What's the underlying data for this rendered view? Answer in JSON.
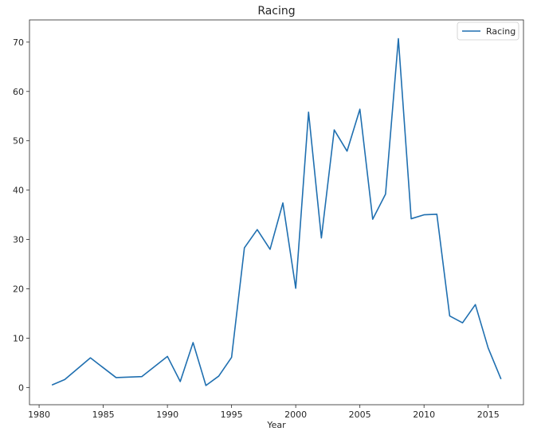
{
  "chart_data": {
    "type": "line",
    "title": "Racing",
    "xlabel": "Year",
    "ylabel": "",
    "xlim": [
      1979.25,
      2017.75
    ],
    "ylim": [
      -3.5,
      74.5
    ],
    "xticks": [
      1980,
      1985,
      1990,
      1995,
      2000,
      2005,
      2010,
      2015
    ],
    "yticks": [
      0,
      10,
      20,
      30,
      40,
      50,
      60,
      70
    ],
    "grid": false,
    "legend": {
      "position": "top-right"
    },
    "colors": {
      "series": "#1f6fb0",
      "axis": "#262626"
    },
    "x": [
      1981,
      1982,
      1984,
      1986,
      1988,
      1990,
      1991,
      1992,
      1993,
      1994,
      1995,
      1996,
      1997,
      1998,
      1999,
      2000,
      2001,
      2002,
      2003,
      2004,
      2005,
      2006,
      2007,
      2008,
      2009,
      2010,
      2011,
      2012,
      2013,
      2014,
      2015,
      2016
    ],
    "series": [
      {
        "name": "Racing",
        "values": [
          0.5,
          1.6,
          6.0,
          2.0,
          2.2,
          6.3,
          1.2,
          9.1,
          0.4,
          2.3,
          6.1,
          28.3,
          32.0,
          28.0,
          37.4,
          20.1,
          55.8,
          30.3,
          52.2,
          47.9,
          56.4,
          34.1,
          39.2,
          70.7,
          34.2,
          35.0,
          35.1,
          14.5,
          13.1,
          16.8,
          8.0,
          1.7
        ]
      }
    ]
  }
}
